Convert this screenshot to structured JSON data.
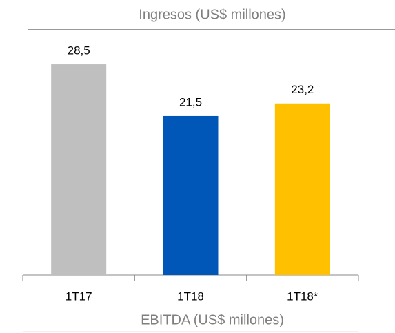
{
  "chart_data": {
    "type": "bar",
    "title": "Ingresos (US$ millones)",
    "categories": [
      "1T17",
      "1T18",
      "1T18*"
    ],
    "values": [
      28.5,
      21.5,
      23.2
    ],
    "value_labels": [
      "28,5",
      "21,5",
      "23,2"
    ],
    "colors": [
      "#bfbfbf",
      "#0057b8",
      "#ffc000"
    ],
    "ylim": [
      0,
      30
    ],
    "annotations": [
      "EBITDA (US$ millones)"
    ]
  }
}
